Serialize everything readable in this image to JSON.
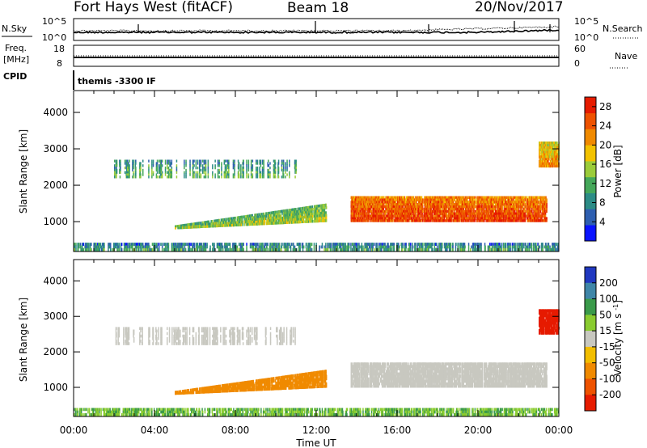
{
  "header": {
    "station": "Fort Hays West (fitACF)",
    "beam": "Beam 18",
    "date": "20/Nov/2017"
  },
  "noise_panel": {
    "left_label": "N.Sky",
    "left_ticks": [
      "10^5",
      "10^0"
    ],
    "right_label": "N.Search",
    "right_ticks": [
      "10^5",
      "10^0"
    ]
  },
  "freq_panel": {
    "left_label_1": "Freq.",
    "left_label_2": "[MHz]",
    "left_ticks": [
      "18",
      "8"
    ],
    "right_label": "Nave",
    "right_ticks": [
      "60",
      "0"
    ]
  },
  "cpid": {
    "label": "CPID",
    "text": "themis -3300 IF"
  },
  "chart_data": [
    {
      "type": "heatmap",
      "name": "power",
      "xlabel": "Time UT",
      "ylabel": "Slant Range [km]",
      "xlim_hours": [
        0,
        24
      ],
      "ylim": [
        180,
        4600
      ],
      "yticks": [
        1000,
        2000,
        3000,
        4000
      ],
      "colorbar": {
        "label": "Power [dB]",
        "ticks": [
          4,
          8,
          12,
          16,
          20,
          24,
          28
        ],
        "range": [
          0,
          30
        ],
        "colors": [
          "#0a14ff",
          "#2e5fb0",
          "#2c8c86",
          "#45a85a",
          "#9bcc3a",
          "#f2c200",
          "#f08a00",
          "#ee5200",
          "#e61b00"
        ]
      },
      "features": [
        {
          "name": "near-range clutter",
          "start_hour": 0.0,
          "end_hour": 24.0,
          "range_km": [
            200,
            420
          ],
          "value_db": 9
        },
        {
          "name": "evening band",
          "start_hour": 5.0,
          "end_hour": 12.5,
          "range_km": [
            750,
            1450
          ],
          "value_db": 14
        },
        {
          "name": "sporadic 2400 km patches",
          "start_hour": 2.0,
          "end_hour": 11.0,
          "range_km": [
            2200,
            2700
          ],
          "value_db": 10
        },
        {
          "name": "strong band",
          "start_hour": 13.7,
          "end_hour": 23.4,
          "range_km": [
            1000,
            1700
          ],
          "value_db": 26
        },
        {
          "name": "far-range echoes",
          "start_hour": 23.0,
          "end_hour": 24.0,
          "range_km": [
            2500,
            3200
          ],
          "value_db": 20
        }
      ]
    },
    {
      "type": "heatmap",
      "name": "velocity",
      "xlabel": "Time UT",
      "ylabel": "Slant Range [km]",
      "xlim_hours": [
        0,
        24
      ],
      "ylim": [
        180,
        4600
      ],
      "yticks": [
        1000,
        2000,
        3000,
        4000
      ],
      "xticks": [
        "00:00",
        "04:00",
        "08:00",
        "12:00",
        "16:00",
        "20:00",
        "00:00"
      ],
      "colorbar": {
        "label": "Velocity [m s^-1]",
        "ticks": [
          200,
          100,
          50,
          15,
          -15,
          -50,
          -100,
          -200
        ],
        "colors": [
          "#2038c0",
          "#3f86a8",
          "#3a9a4a",
          "#8acc30",
          "#c8c8c0",
          "#f2be00",
          "#f08a00",
          "#ee5200",
          "#e61b00"
        ]
      },
      "features": [
        {
          "name": "near-range clutter",
          "start_hour": 0.0,
          "end_hour": 24.0,
          "range_km": [
            200,
            420
          ],
          "value_ms": 30
        },
        {
          "name": "evening band",
          "start_hour": 5.0,
          "end_hour": 12.5,
          "range_km": [
            750,
            1450
          ],
          "value_ms": -60
        },
        {
          "name": "sporadic 2400 km patches",
          "start_hour": 2.0,
          "end_hour": 11.0,
          "range_km": [
            2200,
            2700
          ],
          "value_ms": 0
        },
        {
          "name": "strong band",
          "start_hour": 13.7,
          "end_hour": 23.4,
          "range_km": [
            1000,
            1700
          ],
          "value_ms": 0
        },
        {
          "name": "far-range echoes",
          "start_hour": 23.0,
          "end_hour": 24.0,
          "range_km": [
            2500,
            3200
          ],
          "value_ms": -200
        }
      ]
    }
  ]
}
